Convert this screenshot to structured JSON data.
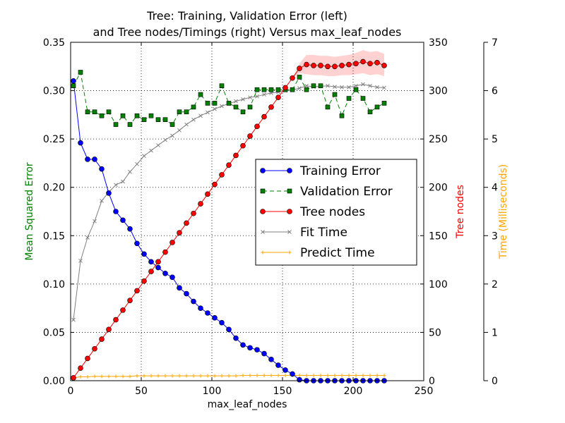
{
  "chart_data": {
    "type": "line",
    "title": [
      "Tree: Training, Validation Error (left)",
      "and Tree nodes/Timings (right) Versus max_leaf_nodes"
    ],
    "xlabel": "max_leaf_nodes",
    "ylabel_left": "Mean Squared Error",
    "ylabel_right1": "Tree nodes",
    "ylabel_right2": "Time (Milliseconds)",
    "xlim": [
      0,
      250
    ],
    "ylim_left": [
      0,
      0.35
    ],
    "ylim_right1": [
      0,
      350
    ],
    "ylim_right2": [
      0,
      7
    ],
    "x_ticks": [
      "0",
      "50",
      "100",
      "150",
      "200",
      "250"
    ],
    "y_left_ticks": [
      "0.00",
      "0.05",
      "0.10",
      "0.15",
      "0.20",
      "0.25",
      "0.30",
      "0.35"
    ],
    "y_right1_ticks": [
      "0",
      "50",
      "100",
      "150",
      "200",
      "250",
      "300",
      "350"
    ],
    "y_right2_ticks": [
      "0",
      "1",
      "2",
      "3",
      "4",
      "5",
      "6",
      "7"
    ],
    "grid": true,
    "legend_position": "center-right",
    "x": [
      2,
      7,
      12,
      17,
      22,
      27,
      32,
      37,
      42,
      47,
      52,
      57,
      62,
      67,
      72,
      77,
      82,
      87,
      92,
      97,
      102,
      107,
      112,
      117,
      122,
      127,
      132,
      137,
      142,
      147,
      152,
      157,
      162,
      167,
      172,
      177,
      182,
      187,
      192,
      197,
      202,
      207,
      212,
      217,
      222
    ],
    "series": [
      {
        "name": "Training Error",
        "axis": "left",
        "color": "#0000ff",
        "marker": "circle",
        "line": "solid",
        "values": [
          0.31,
          0.246,
          0.229,
          0.229,
          0.219,
          0.194,
          0.175,
          0.166,
          0.157,
          0.142,
          0.131,
          0.123,
          0.117,
          0.111,
          0.107,
          0.096,
          0.09,
          0.082,
          0.075,
          0.07,
          0.065,
          0.06,
          0.053,
          0.044,
          0.037,
          0.034,
          0.032,
          0.028,
          0.022,
          0.016,
          0.011,
          0.007,
          0.001,
          0.0,
          0.0,
          0.0,
          0.0,
          0.0,
          0.0,
          0.0,
          0.0,
          0.0,
          0.0,
          0.0,
          0.0
        ]
      },
      {
        "name": "Validation Error",
        "axis": "left",
        "color": "#008000",
        "marker": "square",
        "line": "dashed",
        "values": [
          0.305,
          0.319,
          0.278,
          0.278,
          0.274,
          0.278,
          0.265,
          0.274,
          0.265,
          0.274,
          0.27,
          0.274,
          0.27,
          0.27,
          0.265,
          0.278,
          0.278,
          0.283,
          0.296,
          0.287,
          0.287,
          0.305,
          0.287,
          0.283,
          0.278,
          0.283,
          0.301,
          0.301,
          0.301,
          0.301,
          0.301,
          0.301,
          0.314,
          0.301,
          0.305,
          0.305,
          0.283,
          0.296,
          0.274,
          0.292,
          0.301,
          0.292,
          0.278,
          0.283,
          0.287
        ]
      },
      {
        "name": "Tree nodes",
        "axis": "right1",
        "color": "#ff0000",
        "marker": "circle",
        "line": "solid",
        "values": [
          3,
          13,
          23,
          33,
          43,
          53,
          63,
          73,
          83,
          93,
          103,
          113,
          123,
          133,
          143,
          153,
          163,
          173,
          183,
          193,
          203,
          213,
          223,
          233,
          243,
          253,
          263,
          273,
          283,
          293,
          303,
          313,
          323,
          327,
          326,
          326,
          325,
          325,
          326,
          327,
          328,
          330,
          328,
          329,
          326
        ],
        "band": [
          [
            3,
            3
          ],
          [
            13,
            13
          ],
          [
            23,
            23
          ],
          [
            33,
            33
          ],
          [
            43,
            43
          ],
          [
            53,
            53
          ],
          [
            63,
            63
          ],
          [
            73,
            73
          ],
          [
            83,
            83
          ],
          [
            93,
            93
          ],
          [
            103,
            103
          ],
          [
            113,
            113
          ],
          [
            123,
            123
          ],
          [
            133,
            133
          ],
          [
            143,
            143
          ],
          [
            153,
            153
          ],
          [
            163,
            163
          ],
          [
            173,
            173
          ],
          [
            183,
            183
          ],
          [
            193,
            193
          ],
          [
            203,
            203
          ],
          [
            213,
            213
          ],
          [
            223,
            223
          ],
          [
            233,
            233
          ],
          [
            243,
            243
          ],
          [
            253,
            253
          ],
          [
            263,
            263
          ],
          [
            273,
            273
          ],
          [
            283,
            283
          ],
          [
            293,
            293
          ],
          [
            303,
            303
          ],
          [
            313,
            313
          ],
          [
            318,
            328
          ],
          [
            317,
            337
          ],
          [
            316,
            337
          ],
          [
            316,
            336
          ],
          [
            315,
            336
          ],
          [
            315,
            335
          ],
          [
            316,
            336
          ],
          [
            316,
            337
          ],
          [
            317,
            339
          ],
          [
            318,
            342
          ],
          [
            316,
            340
          ],
          [
            317,
            341
          ],
          [
            315,
            338
          ]
        ]
      },
      {
        "name": "Fit Time",
        "axis": "right2",
        "color": "#808080",
        "marker": "x",
        "line": "solid",
        "values": [
          1.26,
          2.48,
          2.96,
          3.3,
          3.72,
          3.9,
          4.05,
          4.12,
          4.32,
          4.48,
          4.65,
          4.76,
          4.87,
          4.98,
          5.07,
          5.18,
          5.3,
          5.4,
          5.48,
          5.55,
          5.62,
          5.68,
          5.73,
          5.78,
          5.82,
          5.86,
          5.88,
          5.92,
          5.95,
          5.97,
          6.0,
          6.01,
          6.05,
          6.1,
          6.08,
          6.09,
          6.1,
          6.08,
          6.07,
          6.07,
          6.1,
          6.13,
          6.1,
          6.07,
          6.06
        ]
      },
      {
        "name": "Predict Time",
        "axis": "right2",
        "color": "#ffa500",
        "marker": "tri",
        "line": "solid",
        "values": [
          0.06,
          0.08,
          0.08,
          0.09,
          0.09,
          0.09,
          0.09,
          0.09,
          0.09,
          0.1,
          0.1,
          0.1,
          0.1,
          0.1,
          0.1,
          0.1,
          0.1,
          0.1,
          0.1,
          0.1,
          0.1,
          0.1,
          0.1,
          0.1,
          0.11,
          0.11,
          0.11,
          0.11,
          0.11,
          0.11,
          0.11,
          0.11,
          0.11,
          0.11,
          0.11,
          0.11,
          0.11,
          0.11,
          0.11,
          0.11,
          0.11,
          0.11,
          0.11,
          0.11,
          0.11
        ]
      }
    ]
  }
}
